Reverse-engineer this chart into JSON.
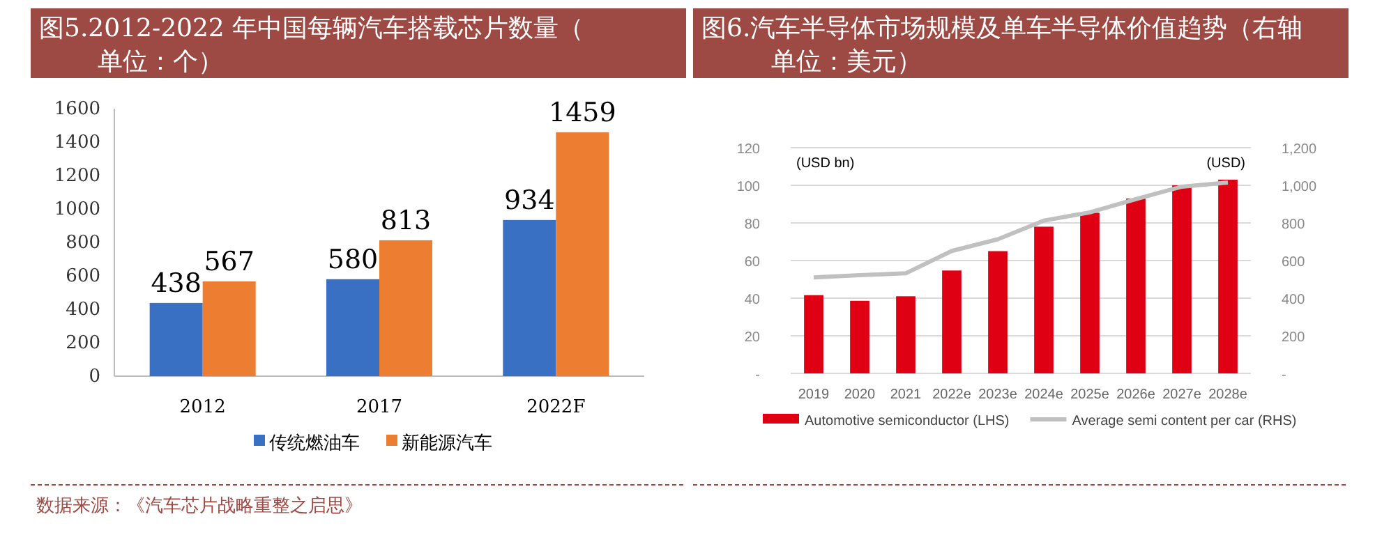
{
  "chart_data": [
    {
      "type": "bar",
      "title": "图5.2012-2022 年中国每辆汽车搭载芯片数量（单位：个）",
      "categories": [
        "2012",
        "2017",
        "2022F"
      ],
      "series": [
        {
          "name": "传统燃油车",
          "color": "#3a70c4",
          "values": [
            438,
            580,
            934
          ]
        },
        {
          "name": "新能源汽车",
          "color": "#ed7d31",
          "values": [
            567,
            813,
            1459
          ]
        }
      ],
      "ylim": [
        0,
        1600
      ],
      "yticks": [
        0,
        200,
        400,
        600,
        800,
        1000,
        1200,
        1400,
        1600
      ],
      "data_labels": true,
      "grid": false,
      "legend": "bottom",
      "annotations": [
        "数据来源：《汽车芯片战略重整之启思》"
      ]
    },
    {
      "type": "bar",
      "title": "图6.汽车半导体市场规模及单车半导体价值趋势（右轴单位：美元）",
      "categories": [
        "2019",
        "2020",
        "2021",
        "2022e",
        "2023e",
        "2024e",
        "2025e",
        "2026e",
        "2027e",
        "2028e"
      ],
      "series": [
        {
          "name": "Automotive semiconductor (LHS)",
          "color": "#df0014",
          "values": [
            41.6,
            38.6,
            41,
            54.7,
            65,
            78,
            85.4,
            93,
            100,
            103
          ]
        },
        {
          "name": "Average semi content per car (RHS)",
          "type": "line",
          "axis": "y2",
          "color": "#c0c0c0",
          "values": [
            510,
            522,
            532,
            651,
            713,
            812,
            856,
            926,
            993,
            1015
          ]
        }
      ],
      "ylabel": "(USD bn)",
      "y2label": "(USD)",
      "ylim": [
        0,
        120
      ],
      "yticks": [
        {
          "value": 0,
          "label": "-"
        },
        20,
        40,
        60,
        80,
        100,
        120
      ],
      "y2lim": [
        0,
        1200
      ],
      "y2ticks": [
        {
          "value": 0,
          "label": "-"
        },
        200,
        400,
        600,
        800,
        {
          "value": 1000,
          "label": "1,000"
        },
        {
          "value": 1200,
          "label": "1,200"
        }
      ],
      "grid": "y",
      "legend": "bottom"
    }
  ]
}
